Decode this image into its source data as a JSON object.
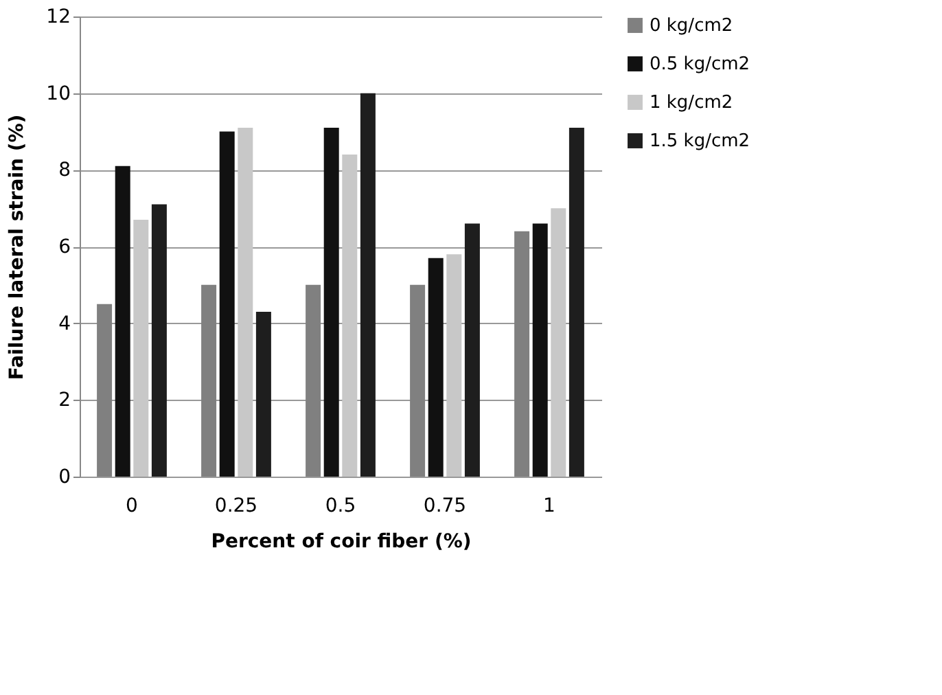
{
  "chart_data": {
    "type": "bar",
    "xlabel": "Percent of coir fiber (%)",
    "ylabel": "Failure  lateral  strain (%)",
    "categories": [
      "0",
      "0.25",
      "0.5",
      "0.75",
      "1"
    ],
    "series": [
      {
        "name": "0 kg/cm2",
        "color": "#808080",
        "values": [
          4.5,
          5.0,
          5.0,
          5.0,
          6.4
        ]
      },
      {
        "name": "0.5 kg/cm2",
        "color": "#111111",
        "values": [
          8.1,
          9.0,
          9.1,
          5.7,
          6.6
        ]
      },
      {
        "name": "1 kg/cm2",
        "color": "#c8c8c8",
        "values": [
          6.7,
          9.1,
          8.4,
          5.8,
          7.0
        ]
      },
      {
        "name": "1.5 kg/cm2",
        "color": "#1e1e1e",
        "values": [
          7.1,
          4.3,
          10.0,
          6.6,
          9.1
        ]
      }
    ],
    "ylim": [
      0,
      12
    ],
    "yticks": [
      0,
      2,
      4,
      6,
      8,
      10,
      12
    ],
    "grid": "y",
    "legend": "right"
  }
}
